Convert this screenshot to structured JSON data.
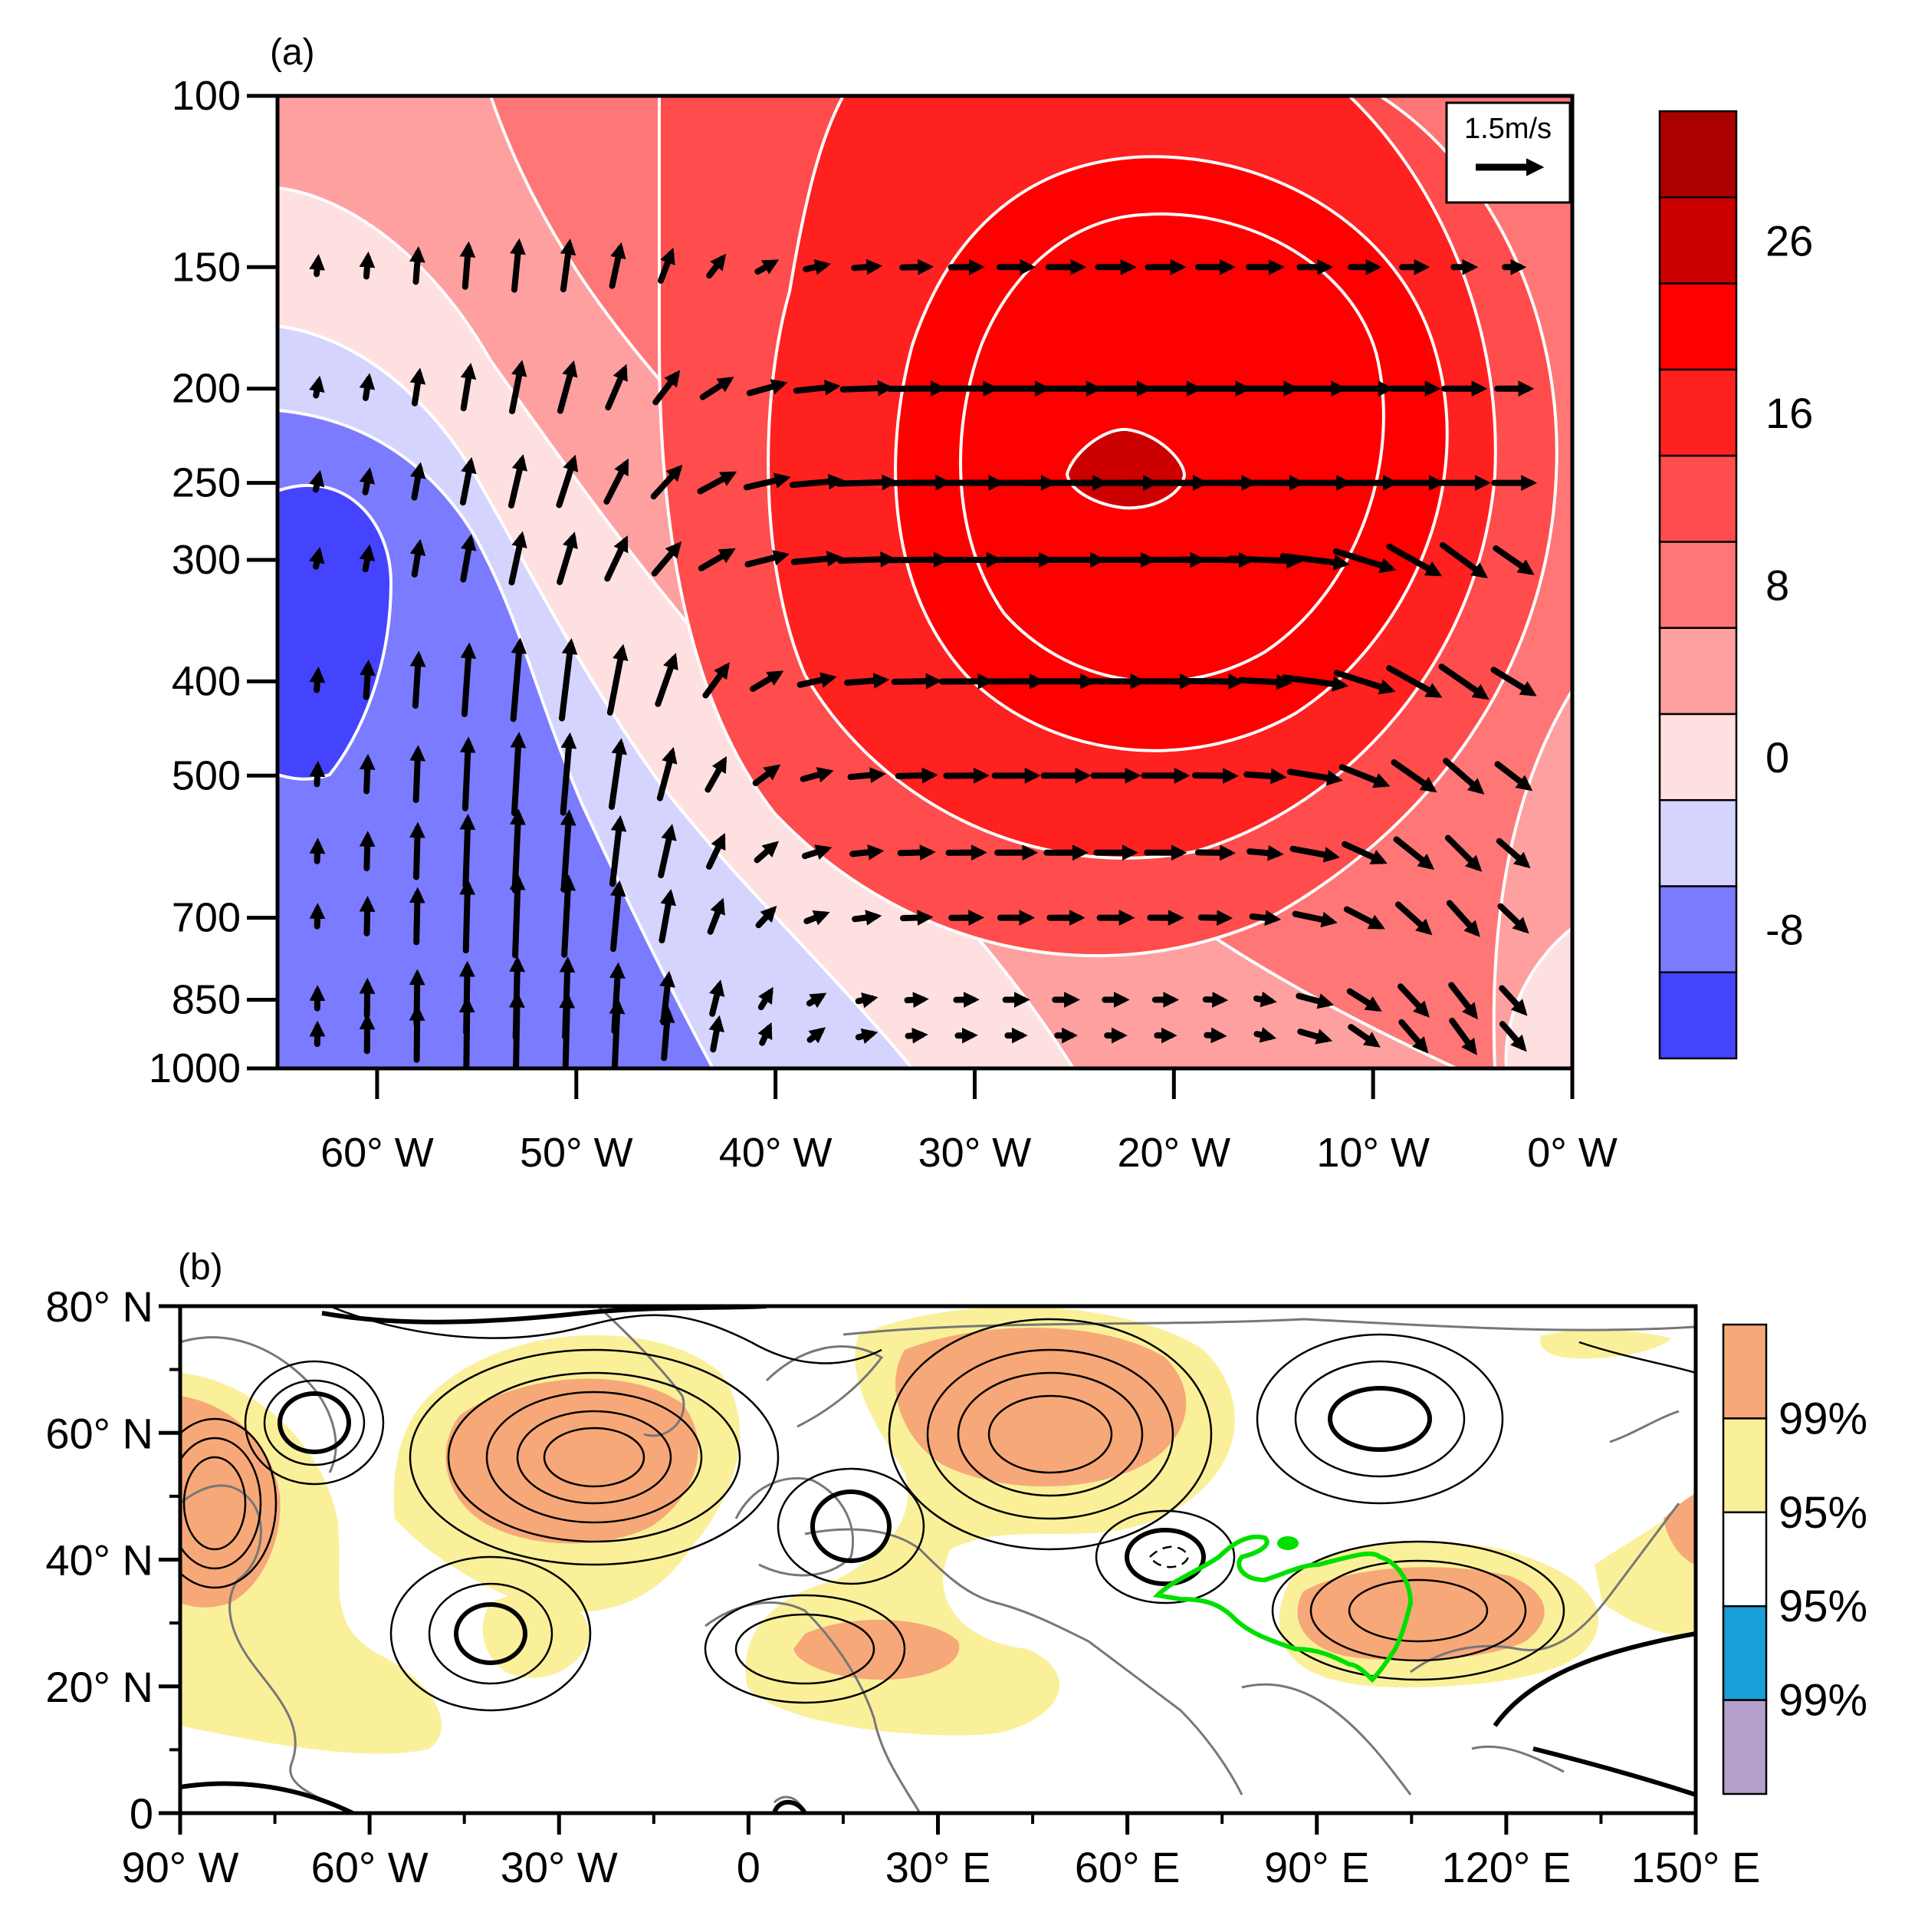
{
  "chart_data": [
    {
      "panel_label": "(a)",
      "type": "contour",
      "y_scale": "log",
      "y_reversed": true,
      "y_ticks": [
        100,
        150,
        200,
        250,
        300,
        400,
        500,
        700,
        850,
        1000
      ],
      "y_tick_labels": [
        "100",
        "150",
        "200",
        "250",
        "300",
        "400",
        "500",
        "700",
        "850",
        "1000"
      ],
      "x_range": [
        -65,
        0
      ],
      "x_ticks": [
        -60,
        -50,
        -40,
        -30,
        -20,
        -10,
        0
      ],
      "x_tick_labels": [
        "60° W",
        "50° W",
        "40° W",
        "30° W",
        "20° W",
        "10° W",
        "0° W"
      ],
      "vector_reference": {
        "label": "1.5m/s",
        "value": 1.5
      },
      "colorbar": {
        "colors": [
          "#4444ff",
          "#7b7bff",
          "#d4d4ff",
          "#ffe0e0",
          "#ffa0a0",
          "#ff7676",
          "#ff4c4c",
          "#ff2020",
          "#ff0000",
          "#cc0000",
          "#aa0000"
        ],
        "labeled_ticks": [
          "-8",
          "0",
          "8",
          "16",
          "26"
        ]
      },
      "field_peak": {
        "lon": -22,
        "level": 250
      },
      "field_trough": {
        "lon": -63,
        "level": 350
      }
    },
    {
      "panel_label": "(b)",
      "type": "map",
      "x_range": [
        -90,
        150
      ],
      "y_range": [
        0,
        80
      ],
      "x_tick_labels": [
        "90° W",
        "60° W",
        "30° W",
        "0",
        "30° E",
        "60° E",
        "90° E",
        "120° E",
        "150° E"
      ],
      "y_tick_labels": [
        "0",
        "20° N",
        "40° N",
        "60° N",
        "80° N"
      ],
      "colorbar": {
        "colors": [
          "#f7a878",
          "#faf09a",
          "#ffffff",
          "#1aa0d8",
          "#b4a0cc"
        ],
        "labels": [
          "99%",
          "95%",
          "95%",
          "99%"
        ]
      },
      "outline_color": "#00e000"
    }
  ]
}
